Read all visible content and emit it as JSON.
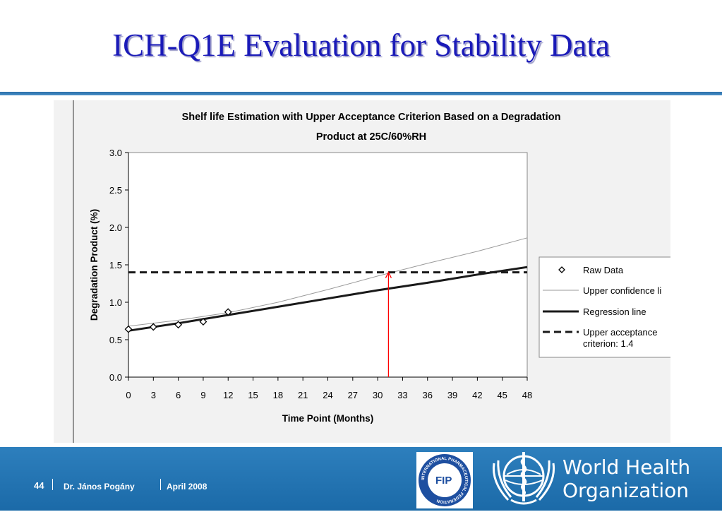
{
  "slide": {
    "title": "ICH-Q1E  Evaluation for Stability Data",
    "title_color": "#1a1ab8",
    "rule_color": "#2a6ea8"
  },
  "footer": {
    "page_number": "44",
    "author": "Dr. János Pogány",
    "date": "April 2008",
    "bg_color": "#1f73b2",
    "who_line1": "World Health",
    "who_line2": "Organization",
    "fip_logo_text": "FIP",
    "fip_ring_text": "INTERNATIONAL PHARMACEUTICAL FEDERATION"
  },
  "chart_data": {
    "type": "line",
    "title": "Shelf life Estimation with Upper Acceptance Criterion Based on a Degradation",
    "subtitle": "Product at  25C/60%RH",
    "xlabel": "Time Point (Months)",
    "ylabel": "Degradation Product (%)",
    "xlim": [
      0,
      48
    ],
    "ylim": [
      0,
      3.0
    ],
    "x_ticks": [
      "0",
      "3",
      "6",
      "9",
      "12",
      "15",
      "18",
      "21",
      "24",
      "27",
      "30",
      "33",
      "36",
      "39",
      "42",
      "45",
      "48"
    ],
    "y_ticks": [
      "0.0",
      "0.5",
      "1.0",
      "1.5",
      "2.0",
      "2.5",
      "3.0"
    ],
    "grid": false,
    "legend_position": "right",
    "series": [
      {
        "name": "Raw Data",
        "style": "markers",
        "x": [
          0,
          3,
          6,
          9,
          12
        ],
        "y": [
          0.64,
          0.67,
          0.7,
          0.74,
          0.87
        ]
      },
      {
        "name": "Upper confidence li",
        "style": "thin",
        "x": [
          0,
          6,
          12,
          18,
          24,
          30,
          36,
          42,
          48
        ],
        "y": [
          0.68,
          0.76,
          0.86,
          1.0,
          1.17,
          1.35,
          1.52,
          1.68,
          1.86
        ]
      },
      {
        "name": "Regression line",
        "style": "thick",
        "x": [
          0,
          6,
          12,
          18,
          24,
          30,
          36,
          42,
          48
        ],
        "y": [
          0.62,
          0.72,
          0.83,
          0.94,
          1.05,
          1.16,
          1.26,
          1.37,
          1.47
        ]
      },
      {
        "name": "Upper acceptance\ncriterion: 1.4",
        "style": "dashed",
        "x": [
          0,
          48
        ],
        "y": [
          1.4,
          1.4
        ]
      }
    ],
    "annotations": [
      {
        "type": "arrow",
        "color": "#ff0000",
        "x": 31.3,
        "from_y": 0,
        "to_y": 1.4
      }
    ]
  }
}
